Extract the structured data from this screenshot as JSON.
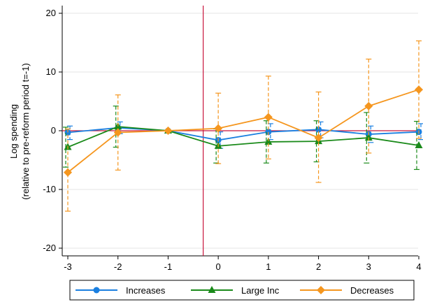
{
  "chart_data": {
    "type": "line",
    "title": "",
    "xlabel": "",
    "ylabel_lines": [
      "Log spending",
      "(relative to pre-reform period t=-1)"
    ],
    "x_ticks": [
      -3,
      -2,
      -1,
      0,
      1,
      2,
      3,
      4
    ],
    "y_ticks": [
      -20,
      -10,
      0,
      10,
      20
    ],
    "xlim": [
      -3,
      4
    ],
    "ylim": [
      -21.5,
      21
    ],
    "reform_line_x": -0.3,
    "zero_line": 0,
    "grid": "horizontal",
    "legend_position": "bottom",
    "series": [
      {
        "name": "Increases",
        "color": "#1a7fe0",
        "marker": "circle",
        "x": [
          -3,
          -2,
          -1,
          0,
          1,
          2,
          3,
          4
        ],
        "values": [
          -0.3,
          0.5,
          0,
          -1.6,
          -0.2,
          0.2,
          -0.6,
          -0.2
        ],
        "ci_low": [
          -1.5,
          -0.5,
          0,
          -3.0,
          -1.5,
          -1.2,
          -2.0,
          -1.5
        ],
        "ci_high": [
          0.8,
          1.5,
          0,
          -0.2,
          1.2,
          1.5,
          0.8,
          1.2
        ]
      },
      {
        "name": "Large Inc",
        "color": "#1a8a1a",
        "marker": "triangle",
        "x": [
          -3,
          -2,
          -1,
          0,
          1,
          2,
          3,
          4
        ],
        "values": [
          -2.8,
          0.7,
          0,
          -2.6,
          -1.9,
          -1.8,
          -1.2,
          -2.5
        ],
        "ci_low": [
          -6.2,
          -2.8,
          0,
          -5.5,
          -5.5,
          -5.3,
          -5.5,
          -6.6
        ],
        "ci_high": [
          0.6,
          4.2,
          0,
          0.3,
          1.7,
          1.7,
          3.1,
          1.6
        ]
      },
      {
        "name": "Decreases",
        "color": "#f5961e",
        "marker": "diamond",
        "x": [
          -3,
          -2,
          -1,
          0,
          1,
          2,
          3,
          4
        ],
        "values": [
          -7.1,
          -0.3,
          0,
          0.4,
          2.3,
          -1.2,
          4.2,
          7.0
        ],
        "ci_low": [
          -13.7,
          -6.7,
          0,
          -5.6,
          -4.8,
          -8.8,
          -3.8,
          -1.3
        ],
        "ci_high": [
          0.3,
          6.1,
          0,
          6.4,
          9.3,
          6.6,
          12.2,
          15.3
        ]
      }
    ]
  }
}
